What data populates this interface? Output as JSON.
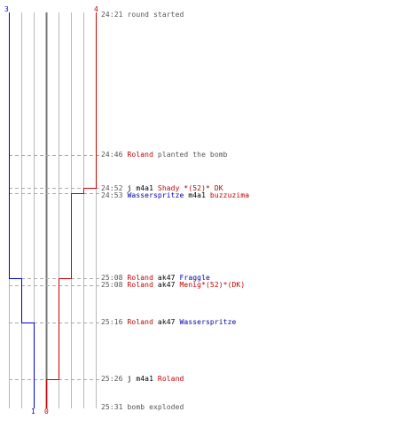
{
  "scores": {
    "ct_start": "3",
    "t_start": "4",
    "ct_end": "1",
    "t_end": "0"
  },
  "colors": {
    "terrorist": "#cc0000",
    "counter_terrorist": "#0000cc",
    "grid": "#b8b8b8",
    "bomb_line": "#777777",
    "dash": "#aaaaaa"
  },
  "events": [
    {
      "time": "24:21",
      "parts": [
        {
          "text": "round started",
          "style": "grey"
        }
      ]
    },
    {
      "time": "24:46",
      "parts": [
        {
          "text": "Roland",
          "style": "t"
        },
        {
          "text": " planted the bomb",
          "style": "grey"
        }
      ]
    },
    {
      "time": "24:52",
      "parts": [
        {
          "text": "j",
          "style": "w"
        },
        {
          "text": " m4a1 ",
          "style": "w"
        },
        {
          "text": "Shady *(52)* DK",
          "style": "t"
        }
      ]
    },
    {
      "time": "24:53",
      "parts": [
        {
          "text": "Wasserspritze",
          "style": "ct"
        },
        {
          "text": " m4a1 ",
          "style": "w"
        },
        {
          "text": "buzzuzima",
          "style": "t"
        }
      ]
    },
    {
      "time": "25:08",
      "parts": [
        {
          "text": "Roland",
          "style": "t"
        },
        {
          "text": " ak47 ",
          "style": "w"
        },
        {
          "text": "Fraggle",
          "style": "ct"
        }
      ]
    },
    {
      "time": "25:08",
      "parts": [
        {
          "text": "Roland",
          "style": "t"
        },
        {
          "text": " ak47 ",
          "style": "w"
        },
        {
          "text": "Menig*(52)*(DK)",
          "style": "t"
        }
      ]
    },
    {
      "time": "25:16",
      "parts": [
        {
          "text": "Roland",
          "style": "t"
        },
        {
          "text": " ak47 ",
          "style": "w"
        },
        {
          "text": "Wasserspritze",
          "style": "ct"
        }
      ]
    },
    {
      "time": "25:26",
      "parts": [
        {
          "text": "j",
          "style": "w"
        },
        {
          "text": " m4a1 ",
          "style": "w"
        },
        {
          "text": "Roland",
          "style": "t"
        }
      ]
    },
    {
      "time": "25:31",
      "parts": [
        {
          "text": "bomb exploded",
          "style": "grey"
        }
      ]
    }
  ]
}
